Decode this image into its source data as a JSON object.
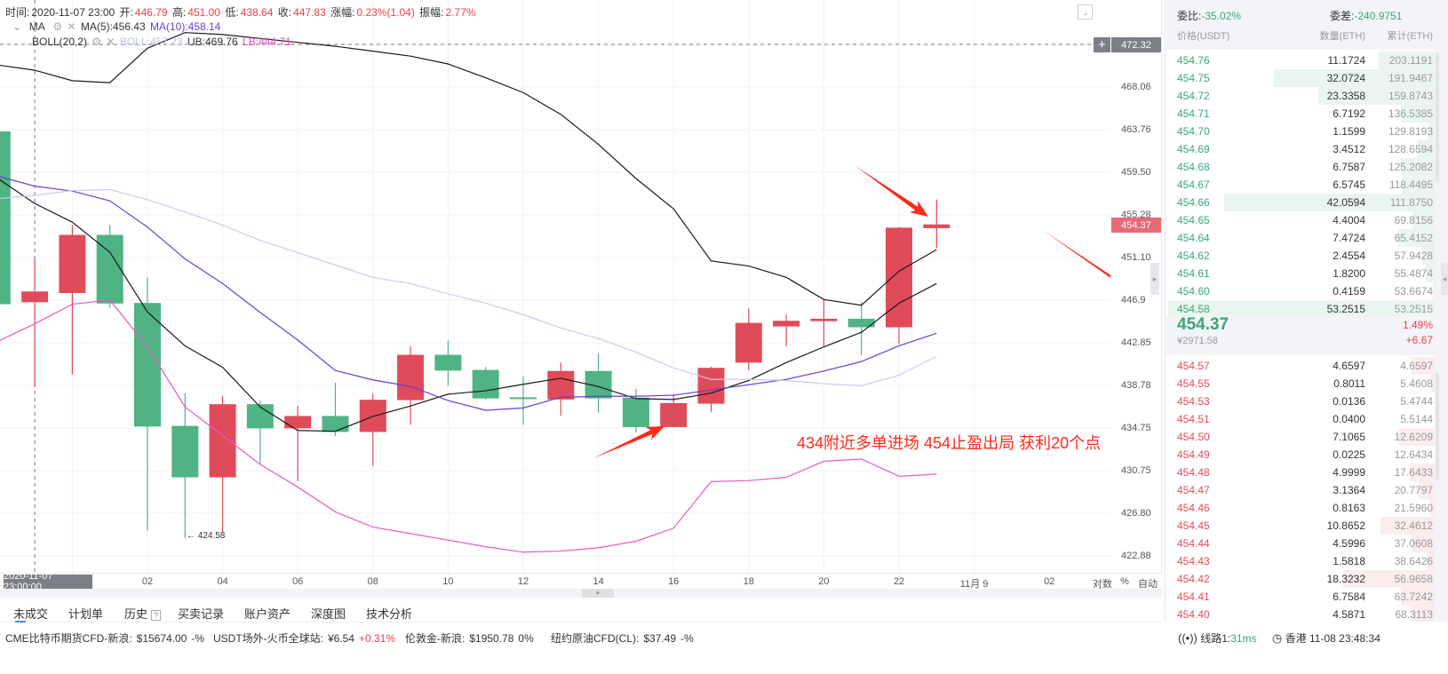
{
  "legend": {
    "time_label": "时间:",
    "time": "2020-11-07 23:00",
    "open_label": "开:",
    "open": "446.79",
    "high_label": "高:",
    "high": "451.00",
    "low_label": "低:",
    "low": "438.64",
    "close_label": "收:",
    "close": "447.83",
    "change_label": "涨幅:",
    "change": "0.23%(1.04)",
    "amplitude_label": "振幅:",
    "amplitude": "2.77%",
    "ma_name": "MA",
    "ma5": "MA(5):456.43",
    "ma10": "MA(10):458.14",
    "boll_name": "BOLL(20,2)",
    "boll": "BOLL:457.23",
    "ub": "UB:469.76",
    "lb": "LB:444.71"
  },
  "y_axis_labels": [
    "468.06",
    "463.76",
    "459.50",
    "455.28",
    "451.10",
    "446.9",
    "442.85",
    "438.78",
    "434.75",
    "430.75",
    "426.80",
    "422.88"
  ],
  "x_axis_labels": [
    {
      "label": "02",
      "hour": 2
    },
    {
      "label": "04",
      "hour": 4
    },
    {
      "label": "06",
      "hour": 6
    },
    {
      "label": "08",
      "hour": 8
    },
    {
      "label": "10",
      "hour": 10
    },
    {
      "label": "12",
      "hour": 12
    },
    {
      "label": "14",
      "hour": 14
    },
    {
      "label": "16",
      "hour": 16
    },
    {
      "label": "18",
      "hour": 18
    },
    {
      "label": "20",
      "hour": 20
    },
    {
      "label": "22",
      "hour": 22
    },
    {
      "label": "11月 9",
      "hour": 24
    },
    {
      "label": "02",
      "hour": 26
    }
  ],
  "crosshair": {
    "price": "472.32",
    "time": "2020-11-07 23:00:00",
    "plus": "+"
  },
  "current_price_label": "454.37",
  "low_marker": "← 424.58",
  "axis_modes": {
    "log": "对数",
    "percent": "%",
    "auto": "自动",
    "log_active": true
  },
  "annotation": "434附近多单进场 454止盈出局 获利20个点",
  "colors": {
    "up": "#e04b5a",
    "down": "#4fb383",
    "ma5": "#1a1a1a",
    "ma10": "#6b3fd0",
    "boll": "#c9cce9",
    "ub": "#1a1a1a",
    "lb": "#e55ac8",
    "arrow": "#ff2a1a",
    "accent": "#3f8ee8"
  },
  "chart_data": {
    "type": "candlestick",
    "y_scale": "log",
    "ylim": [
      421.5,
      476
    ],
    "grid": true,
    "x": [
      "2020-11-07 22:00",
      "2020-11-07 23:00",
      "2020-11-08 00:00",
      "01:00",
      "02:00",
      "03:00",
      "04:00",
      "05:00",
      "06:00",
      "07:00",
      "08:00",
      "09:00",
      "10:00",
      "11:00",
      "12:00",
      "13:00",
      "14:00",
      "15:00",
      "16:00",
      "17:00",
      "18:00",
      "19:00",
      "20:00",
      "21:00",
      "22:00",
      "23:00"
    ],
    "open": [
      463.6,
      446.79,
      447.68,
      453.34,
      446.72,
      435.01,
      430.2,
      437.05,
      434.78,
      435.94,
      434.44,
      437.44,
      441.74,
      440.3,
      437.7,
      437.5,
      440.2,
      437.67,
      434.9,
      437.1,
      441.0,
      444.46,
      444.97,
      445.2,
      444.38,
      454.0
    ],
    "high": [
      464.3,
      451.0,
      454.28,
      454.33,
      449.16,
      438.09,
      437.8,
      437.4,
      436.9,
      439.08,
      438.06,
      442.56,
      443.1,
      440.58,
      439.7,
      441.0,
      441.83,
      438.5,
      438.0,
      440.6,
      446.2,
      445.6,
      447.1,
      446.83,
      454.13,
      456.83
    ],
    "low": [
      446.0,
      438.64,
      439.9,
      446.27,
      425.3,
      424.58,
      425.1,
      431.4,
      429.86,
      434.05,
      431.27,
      435.12,
      438.8,
      437.5,
      435.12,
      435.97,
      436.25,
      434.4,
      434.9,
      436.3,
      440.3,
      442.55,
      442.5,
      441.7,
      442.78,
      452.05
    ],
    "close": [
      446.6,
      447.83,
      453.34,
      446.67,
      434.95,
      430.2,
      437.05,
      434.78,
      435.94,
      434.44,
      437.47,
      441.74,
      440.24,
      437.6,
      437.6,
      440.2,
      437.6,
      434.9,
      437.16,
      440.5,
      444.8,
      445.0,
      445.2,
      444.38,
      454.05,
      454.37
    ],
    "series": [
      {
        "name": "MA(5)",
        "key": "ma5",
        "values": [
          458.95,
          456.43,
          454.59,
          451.65,
          445.85,
          442.59,
          440.55,
          436.79,
          434.58,
          434.5,
          435.9,
          436.88,
          438.0,
          438.32,
          438.94,
          439.51,
          438.72,
          437.58,
          437.5,
          438.1,
          439.3,
          441.0,
          442.5,
          443.9,
          446.7,
          448.6
        ]
      },
      {
        "name": "MA(10)",
        "key": "ma10",
        "values": [
          459.15,
          458.14,
          457.65,
          456.69,
          454.11,
          451.0,
          448.6,
          445.8,
          443.16,
          440.25,
          439.35,
          438.74,
          437.4,
          436.48,
          436.7,
          437.7,
          437.8,
          437.8,
          437.9,
          438.4,
          438.9,
          439.4,
          440.2,
          441.1,
          442.6,
          443.8
        ]
      },
      {
        "name": "BOLL",
        "key": "boll",
        "values": [
          456.9,
          457.23,
          457.7,
          457.8,
          456.8,
          455.6,
          454.3,
          452.8,
          451.6,
          450.4,
          449.2,
          448.6,
          447.6,
          446.7,
          445.6,
          444.3,
          443.3,
          442.0,
          440.5,
          439.4,
          439.4,
          439.3,
          439.0,
          438.8,
          439.8,
          441.6
        ]
      },
      {
        "name": "UB",
        "key": "ub",
        "values": [
          470.3,
          469.76,
          468.7,
          468.5,
          472.0,
          473.6,
          473.4,
          473.0,
          472.6,
          472.2,
          471.7,
          471.2,
          470.4,
          469.0,
          467.5,
          465.3,
          462.3,
          458.9,
          455.9,
          450.8,
          450.3,
          449.2,
          447.05,
          446.5,
          449.8,
          451.9
        ]
      },
      {
        "name": "LB",
        "key": "lb",
        "values": [
          443.0,
          444.71,
          446.6,
          447.0,
          442.5,
          436.8,
          434.1,
          431.4,
          429.3,
          427.0,
          425.6,
          425.0,
          424.4,
          423.8,
          423.3,
          423.4,
          423.7,
          424.3,
          425.5,
          429.8,
          429.9,
          430.2,
          431.7,
          431.9,
          430.3,
          430.5
        ]
      }
    ]
  },
  "tabs": [
    {
      "label": "未成交",
      "active": true
    },
    {
      "label": "计划单"
    },
    {
      "label": "历史",
      "help": "?"
    },
    {
      "label": "买卖记录"
    },
    {
      "label": "账户资产"
    },
    {
      "label": "深度图"
    },
    {
      "label": "技术分析"
    }
  ],
  "ticker": [
    {
      "name": "CME比特币期货CFD-新浪:",
      "value": "$15674.00",
      "change": "-%",
      "dir": "flat"
    },
    {
      "name": "USDT场外-火币全球站:",
      "value": "¥6.54",
      "change": "+0.31%",
      "dir": "up"
    },
    {
      "name": "伦敦金-新浪:",
      "value": "$1950.78",
      "change": "0%",
      "dir": "flat"
    },
    {
      "name": "纽约原油CFD(CL):",
      "value": "$37.49",
      "change": "-%",
      "dir": "flat"
    }
  ],
  "status": {
    "line_label": "线路1:",
    "latency": "31ms",
    "clock": "香港 11-08 23:48:34"
  },
  "orderbook": {
    "ratio_label": "委比:",
    "ratio": "-35.02%",
    "diff_label": "委差:",
    "diff": "-240.9751",
    "headers": [
      "价格(USDT)",
      "数量(ETH)",
      "累计(ETH)"
    ],
    "asks": [
      [
        "454.76",
        "11.1724",
        "203.1191"
      ],
      [
        "454.75",
        "32.0724",
        "191.9467"
      ],
      [
        "454.72",
        "23.3358",
        "159.8743"
      ],
      [
        "454.71",
        "6.7192",
        "136.5385"
      ],
      [
        "454.70",
        "1.1599",
        "129.8193"
      ],
      [
        "454.69",
        "3.4512",
        "128.6594"
      ],
      [
        "454.68",
        "6.7587",
        "125.2082"
      ],
      [
        "454.67",
        "6.5745",
        "118.4495"
      ],
      [
        "454.66",
        "42.0594",
        "111.8750"
      ],
      [
        "454.65",
        "4.4004",
        "69.8156"
      ],
      [
        "454.64",
        "7.4724",
        "65.4152"
      ],
      [
        "454.62",
        "2.4554",
        "57.9428"
      ],
      [
        "454.61",
        "1.8200",
        "55.4874"
      ],
      [
        "454.60",
        "0.4159",
        "53.6674"
      ],
      [
        "454.58",
        "53.2515",
        "53.2515"
      ]
    ],
    "last_price": "454.37",
    "last_cny": "¥2971.58",
    "change_pct": "1.49%",
    "change_abs": "+6.67",
    "bids": [
      [
        "454.57",
        "4.6597",
        "4.6597"
      ],
      [
        "454.55",
        "0.8011",
        "5.4608"
      ],
      [
        "454.53",
        "0.0136",
        "5.4744"
      ],
      [
        "454.51",
        "0.0400",
        "5.5144"
      ],
      [
        "454.50",
        "7.1065",
        "12.6209"
      ],
      [
        "454.49",
        "0.0225",
        "12.6434"
      ],
      [
        "454.48",
        "4.9999",
        "17.6433"
      ],
      [
        "454.47",
        "3.1364",
        "20.7797"
      ],
      [
        "454.46",
        "0.8163",
        "21.5960"
      ],
      [
        "454.45",
        "10.8652",
        "32.4612"
      ],
      [
        "454.44",
        "4.5996",
        "37.0608"
      ],
      [
        "454.43",
        "1.5818",
        "38.6426"
      ],
      [
        "454.42",
        "18.3232",
        "56.9658"
      ],
      [
        "454.41",
        "6.7584",
        "63.7242"
      ],
      [
        "454.40",
        "4.5871",
        "68.3113"
      ]
    ]
  }
}
